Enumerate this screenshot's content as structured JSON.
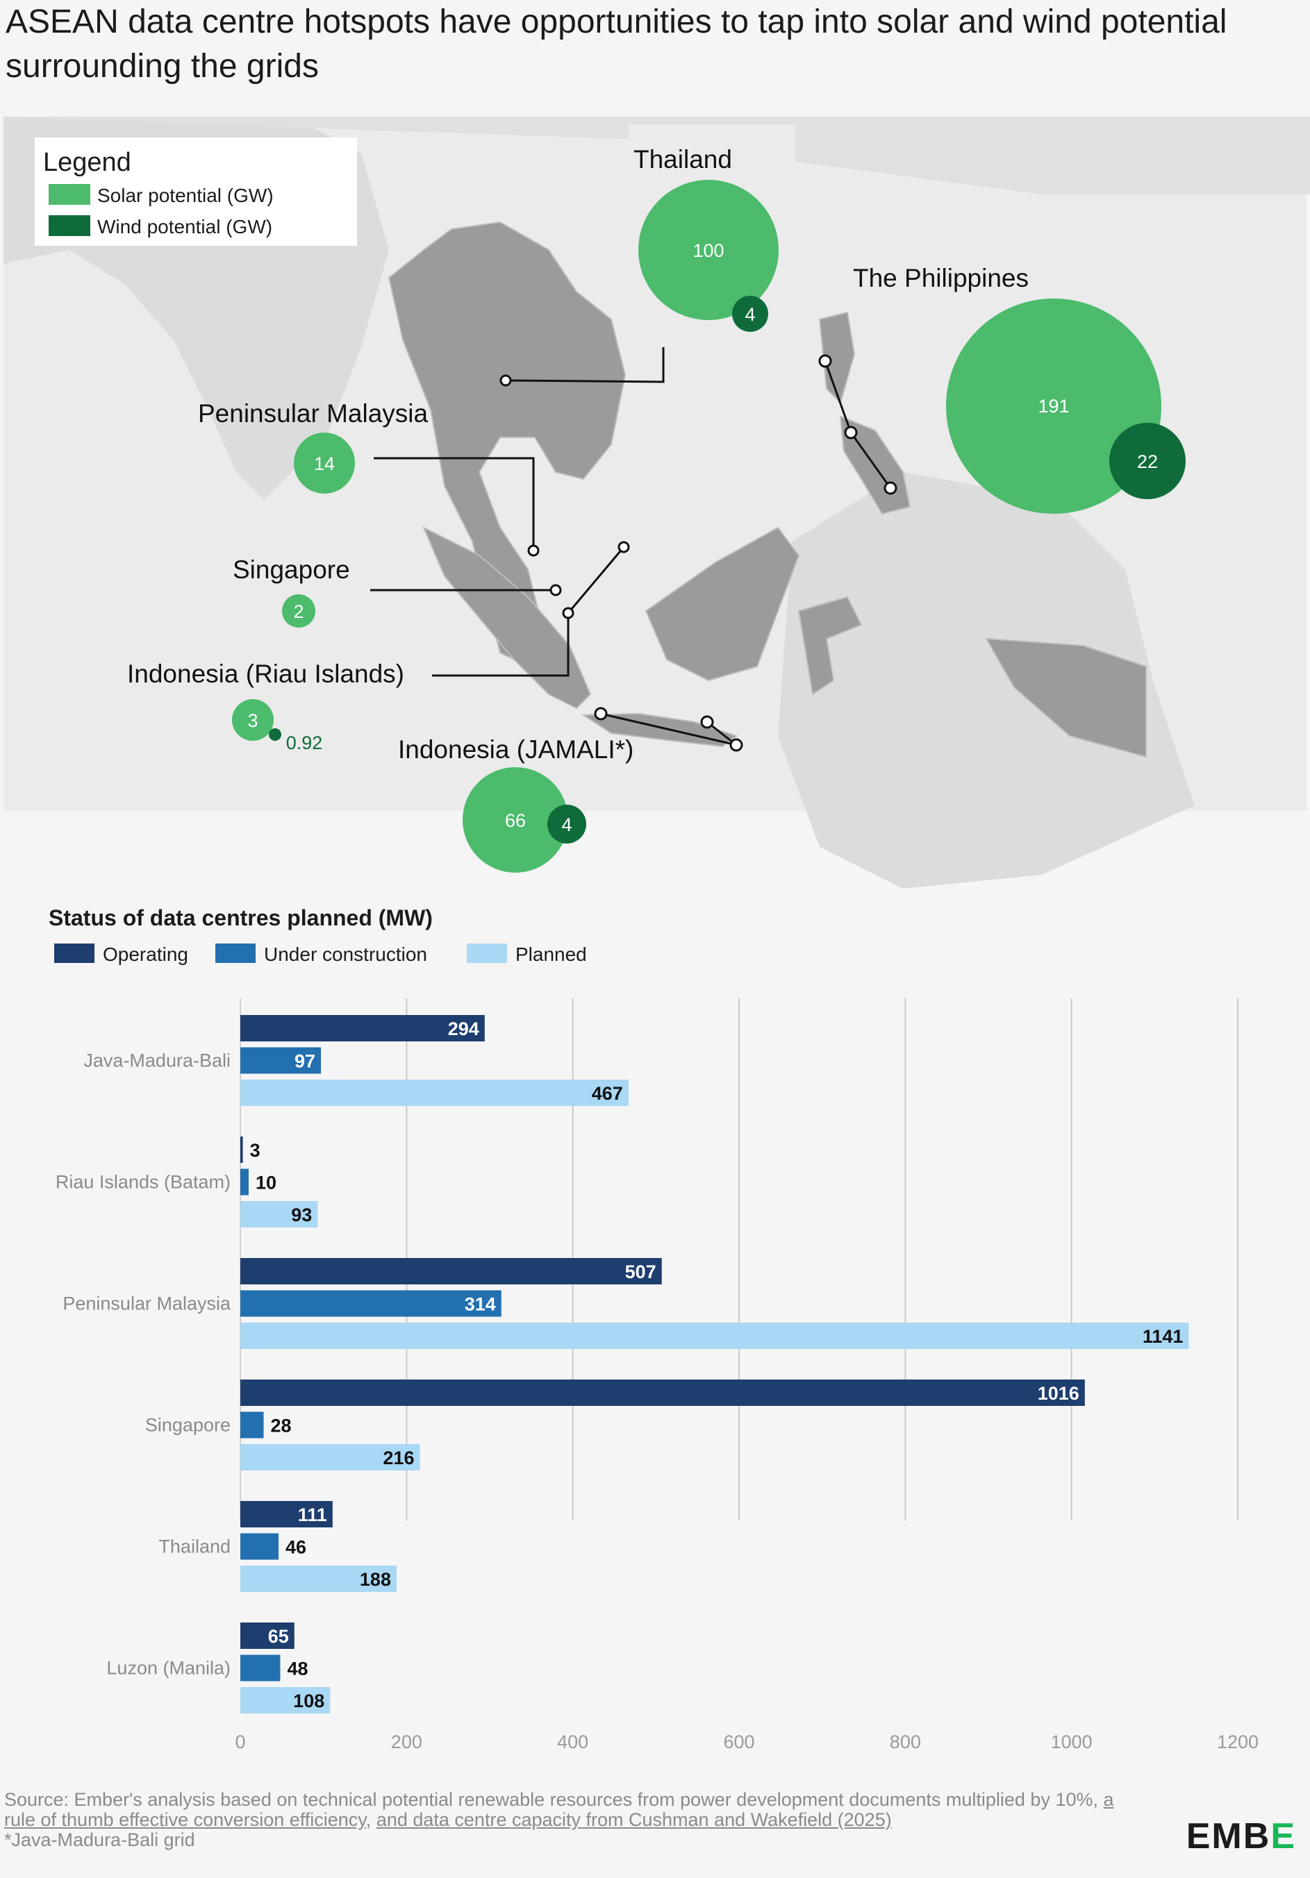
{
  "title": "ASEAN data centre hotspots have opportunities to tap into solar and wind potential surrounding the grids",
  "colors": {
    "solar": "#4cbb6c",
    "wind": "#0f6b3a",
    "operating": "#1d3e6e",
    "under_construction": "#2270b0",
    "planned": "#a9d8f4",
    "land": "#9b9b9b",
    "background": "#f5f5f5"
  },
  "map": {
    "legend": {
      "title": "Legend",
      "items": [
        {
          "label": "Solar potential (GW)",
          "color": "#4cbb6c"
        },
        {
          "label": "Wind potential (GW)",
          "color": "#0f6b3a"
        }
      ]
    },
    "regions": [
      {
        "name": "Thailand",
        "solar": "100",
        "wind": "4"
      },
      {
        "name": "The Philippines",
        "solar": "191",
        "wind": "22"
      },
      {
        "name": "Peninsular Malaysia",
        "solar": "14",
        "wind": ""
      },
      {
        "name": "Singapore",
        "solar": "2",
        "wind": ""
      },
      {
        "name": "Indonesia (Riau Islands)",
        "solar": "3",
        "wind": "0.92"
      },
      {
        "name": "Indonesia (JAMALI*)",
        "solar": "66",
        "wind": "4"
      }
    ]
  },
  "chart_data": {
    "type": "bar",
    "orientation": "horizontal",
    "title": "Status of data centres planned (MW)",
    "categories": [
      "Java-Madura-Bali",
      "Riau Islands (Batam)",
      "Peninsular Malaysia",
      "Singapore",
      "Thailand",
      "Luzon (Manila)"
    ],
    "series": [
      {
        "name": "Operating",
        "color": "#1d3e6e",
        "values": [
          294,
          3,
          507,
          1016,
          111,
          65
        ]
      },
      {
        "name": "Under construction",
        "color": "#2270b0",
        "values": [
          97,
          10,
          314,
          28,
          46,
          48
        ]
      },
      {
        "name": "Planned",
        "color": "#a9d8f4",
        "values": [
          467,
          93,
          1141,
          216,
          188,
          108
        ]
      }
    ],
    "xlim": [
      0,
      1200
    ],
    "xticks": [
      "0",
      "200",
      "400",
      "600",
      "800",
      "1000",
      "1200"
    ],
    "grid": true,
    "legend": "top-left"
  },
  "source": {
    "prefix": "Source: Ember's analysis based on technical potential renewable resources from power development documents multiplied by 10%,",
    "link1": "a rule of thumb effective conversion efficiency",
    "mid": ",",
    "link2": "and data centre capacity from Cushman and Wakefield (2025)",
    "footnote": "*Java-Madura-Bali grid"
  },
  "logo": {
    "text": "EMB",
    "accent": "E"
  }
}
